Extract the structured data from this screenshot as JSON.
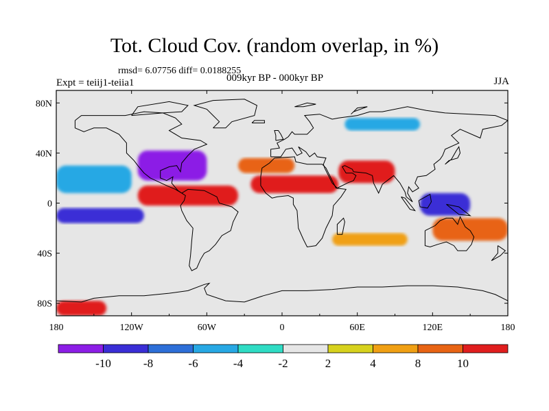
{
  "title": "Tot. Cloud Cov. (random overlap, in %)",
  "subtitle": "rmsd= 6.07756 diff= 0.0188255",
  "left_string": "Expt = teiij1-teiia1",
  "center_string": "009kyr BP - 000kyr BP",
  "right_string": "JJA",
  "chart_data": {
    "type": "heatmap",
    "projection": "cylindrical-equidistant",
    "xlim": [
      -180,
      180
    ],
    "ylim": [
      -90,
      90
    ],
    "x_ticks": [
      {
        "value": -180,
        "label": "180"
      },
      {
        "value": -120,
        "label": "120W"
      },
      {
        "value": -60,
        "label": "60W"
      },
      {
        "value": 0,
        "label": "0"
      },
      {
        "value": 60,
        "label": "60E"
      },
      {
        "value": 120,
        "label": "120E"
      },
      {
        "value": 180,
        "label": "180"
      }
    ],
    "y_ticks": [
      {
        "value": 80,
        "label": "80N"
      },
      {
        "value": 40,
        "label": "40N"
      },
      {
        "value": 0,
        "label": "0"
      },
      {
        "value": -40,
        "label": "40S"
      },
      {
        "value": -80,
        "label": "80S"
      }
    ],
    "colorbar": {
      "levels": [
        -10,
        -8,
        -6,
        -4,
        -2,
        2,
        4,
        8,
        10
      ],
      "labels": [
        "-10",
        "-8",
        "-6",
        "-4",
        "-2",
        "2",
        "4",
        "8",
        "10"
      ],
      "colors": [
        "#8c1ee6",
        "#3a2ed6",
        "#2d6fd8",
        "#27a8e4",
        "#2fdcc4",
        "#e6e6e6",
        "#d7d21e",
        "#f0a014",
        "#e86414",
        "#e01e1e"
      ]
    },
    "background_color": "#e6e6e6",
    "regions": [
      {
        "name": "equatorial-east-pacific-atlantic",
        "lon": [
          -115,
          -35
        ],
        "lat": [
          -2,
          14
        ],
        "value": 10
      },
      {
        "name": "sahel-arabia",
        "lon": [
          -25,
          45
        ],
        "lat": [
          8,
          22
        ],
        "value": 10
      },
      {
        "name": "india-arabian-sea",
        "lon": [
          45,
          90
        ],
        "lat": [
          16,
          34
        ],
        "value": 10
      },
      {
        "name": "north-atlantic-orange",
        "lon": [
          -35,
          10
        ],
        "lat": [
          24,
          36
        ],
        "value": 8
      },
      {
        "name": "western-north-atlantic",
        "lon": [
          -115,
          -60
        ],
        "lat": [
          18,
          42
        ],
        "value": -10
      },
      {
        "name": "south-pacific-band",
        "lon": [
          -180,
          -110
        ],
        "lat": [
          -16,
          -4
        ],
        "value": -8
      },
      {
        "name": "maritime-continent",
        "lon": [
          110,
          150
        ],
        "lat": [
          -10,
          8
        ],
        "value": -8
      },
      {
        "name": "north-pacific-cyan",
        "lon": [
          -180,
          -120
        ],
        "lat": [
          8,
          30
        ],
        "value": -4
      },
      {
        "name": "siberia-cyan",
        "lon": [
          50,
          110
        ],
        "lat": [
          58,
          68
        ],
        "value": -4
      },
      {
        "name": "australia-orange",
        "lon": [
          120,
          180
        ],
        "lat": [
          -30,
          -12
        ],
        "value": 8
      },
      {
        "name": "antarctic-coast-red",
        "lon": [
          -180,
          -140
        ],
        "lat": [
          -90,
          -78
        ],
        "value": 10
      },
      {
        "name": "southern-indian-yellow",
        "lon": [
          40,
          100
        ],
        "lat": [
          -34,
          -24
        ],
        "value": 4
      }
    ]
  }
}
